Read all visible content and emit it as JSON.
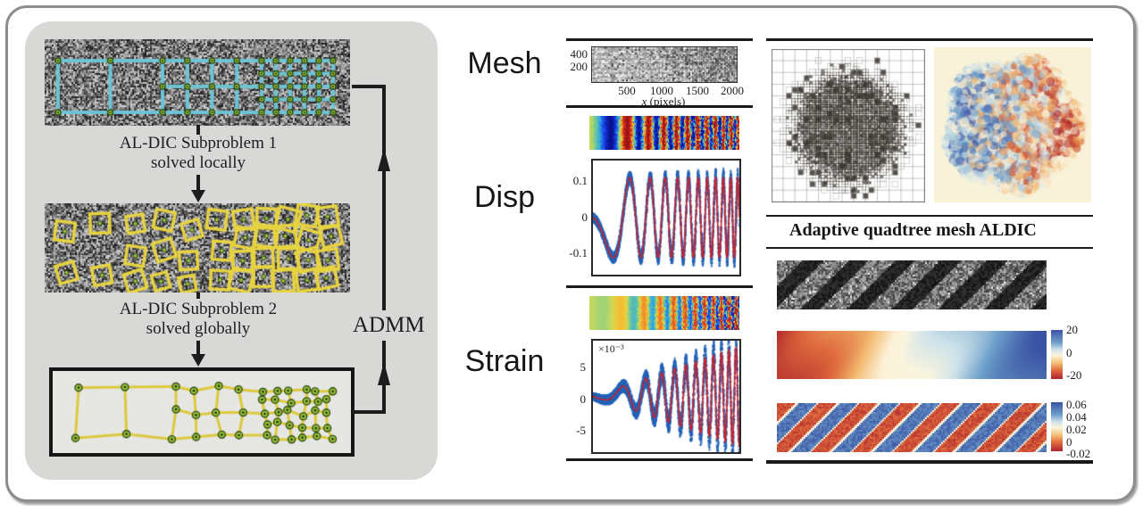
{
  "figure": {
    "flowchart": {
      "step1": [
        "AL-DIC Subproblem 1",
        "solved locally"
      ],
      "step2": [
        "AL-DIC Subproblem 2",
        "solved globally"
      ],
      "loop_label": "ADMM"
    },
    "row_labels": {
      "mesh": "Mesh",
      "disp": "Disp",
      "strain": "Strain"
    },
    "caption_right": "Adaptive quadtree mesh ALDIC"
  },
  "colors": {
    "subset_grid_cyan": "#6cc4d5",
    "subset_square_yellow": "#e7d340",
    "mesh_line_yellow": "#dcc93e",
    "node_fill_green": "#9ec437",
    "node_ring_dark": "#2c4a12",
    "scatter_blue": "#2263b8",
    "fit_line_red": "#cc2128",
    "arrow_black": "#1c1c1c"
  },
  "chart_data": [
    {
      "id": "mesh-plot",
      "type": "image",
      "xlabel": "x (pixels)",
      "xlabel_parts": [
        "x",
        "(pixels)"
      ],
      "x_ticks": [
        500,
        1000,
        1500,
        2000
      ],
      "y_ticks": [
        400,
        200
      ],
      "xlim": [
        0,
        2048
      ],
      "ylim": [
        0,
        512
      ],
      "content": "speckle image with adaptive mesh overlay, element density increasing with x"
    },
    {
      "id": "disp-line-plot",
      "type": "line",
      "y_tick_labels": [
        "0.1",
        "0",
        "-0.1"
      ],
      "y_ticks": [
        0.1,
        0,
        -0.1
      ],
      "ylim": [
        -0.15,
        0.15
      ],
      "series": [
        {
          "name": "solved displacement (scatter)",
          "color": "#2263b8",
          "style": "scatter"
        },
        {
          "name": "exact displacement (line)",
          "color": "#cc2128",
          "style": "line"
        }
      ],
      "signal": {
        "kind": "chirp",
        "amplitude": 0.105,
        "total_cycles": 11,
        "phase_coeff_linear": 0.3,
        "phase_coeff_quad": 10.7
      }
    },
    {
      "id": "strain-line-plot",
      "type": "line",
      "scale_label": "×10⁻³",
      "y_tick_labels": [
        "5",
        "0",
        "-5"
      ],
      "y_ticks": [
        0.005,
        0,
        -0.005
      ],
      "ylim": [
        -0.008,
        0.008
      ],
      "series": [
        {
          "name": "solved strain (scatter)",
          "color": "#2263b8",
          "style": "scatter"
        },
        {
          "name": "exact strain (line)",
          "color": "#cc2128",
          "style": "line"
        }
      ],
      "signal": {
        "kind": "chirp",
        "envelope": "linear",
        "amplitude_max": 0.0072,
        "total_cycles": 11,
        "phase_coeff_linear": 0.3,
        "phase_coeff_quad": 10.7
      }
    },
    {
      "id": "disp-field-stripe",
      "type": "heatmap",
      "colormap": "jet",
      "content": "displacement field, vertical bands of increasing frequency"
    },
    {
      "id": "strain-field-stripe",
      "type": "heatmap",
      "colormap": "jet",
      "content": "strain field, near-uniform at left, bands of increasing frequency to the right"
    },
    {
      "id": "u-field-right",
      "type": "heatmap",
      "colormap": "RdYlBu",
      "range": [
        -20,
        20
      ],
      "colorbar_ticks": [
        "20",
        "0",
        "-20"
      ],
      "content": "smooth field from red (left) to blue (right) with diagonal waves"
    },
    {
      "id": "exx-field-right",
      "type": "heatmap",
      "colormap": "RdYlBu",
      "range": [
        -0.02,
        0.06
      ],
      "colorbar_ticks": [
        "0.06",
        "0.04",
        "0.02",
        "0",
        "-0.02"
      ],
      "content": "alternating diagonal red/blue stripes"
    }
  ]
}
